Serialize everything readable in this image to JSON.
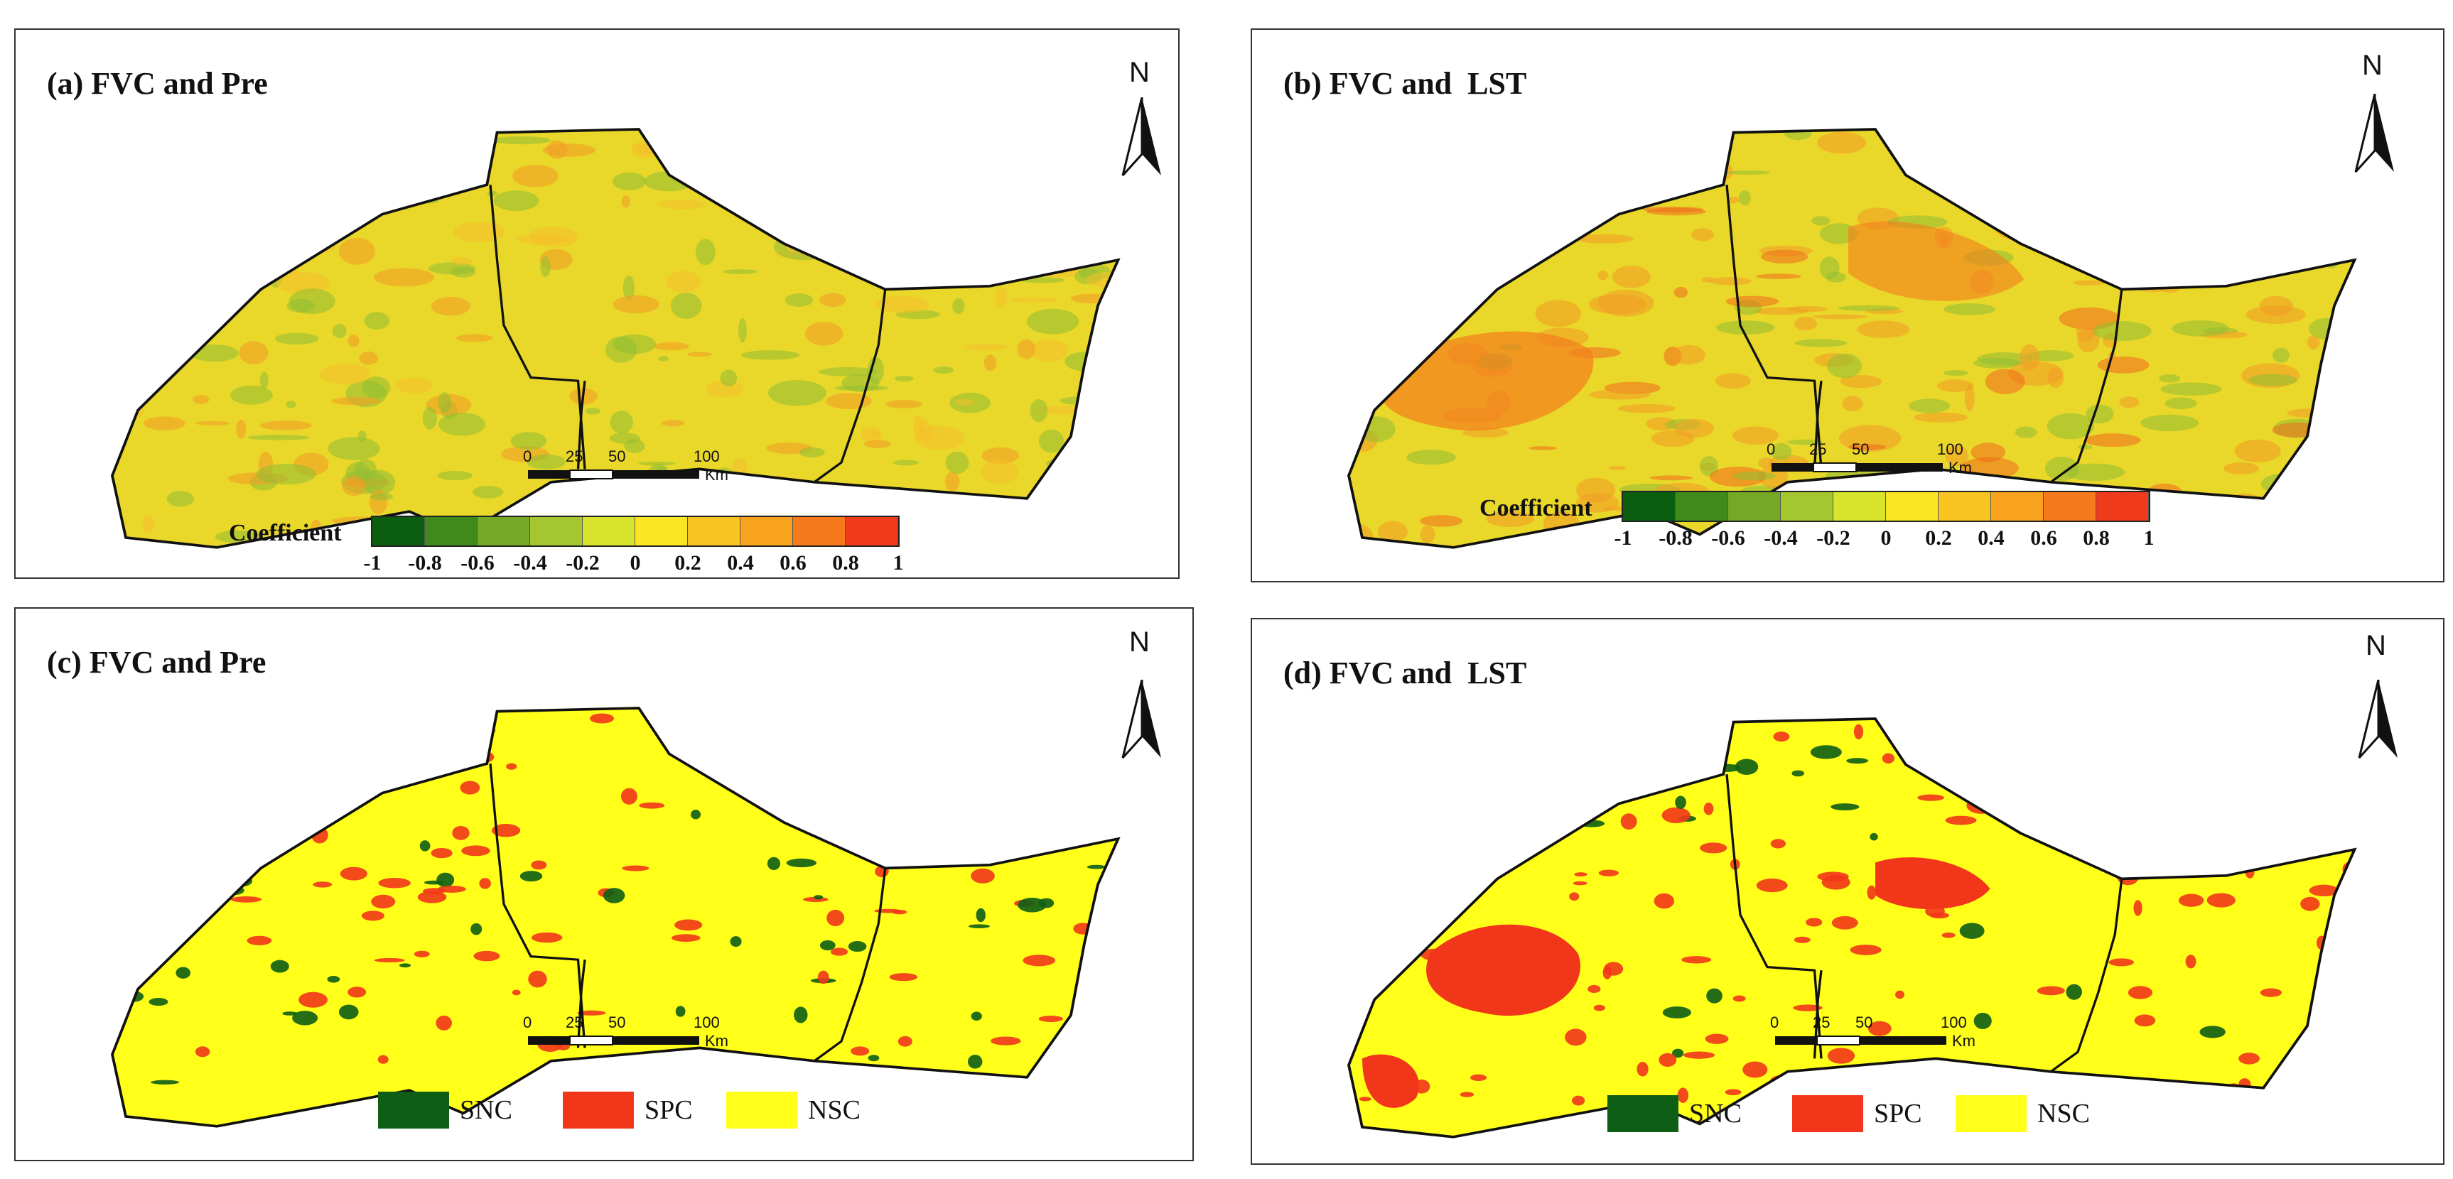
{
  "panels": [
    {
      "id": "a",
      "title": "(a) FVC and Pre",
      "mode": "coef"
    },
    {
      "id": "b",
      "title": "(b) FVC and  LST",
      "mode": "coef"
    },
    {
      "id": "c",
      "title": "(c) FVC and Pre",
      "mode": "class"
    },
    {
      "id": "d",
      "title": "(d) FVC and  LST",
      "mode": "class"
    }
  ],
  "north_label": "N",
  "scale_bar": {
    "ticks": [
      "0",
      "25",
      "50",
      "100"
    ],
    "unit": "Km"
  },
  "coef_legend": {
    "title": "Coefficient",
    "tick_labels": [
      "-1",
      "-0.8",
      "-0.6",
      "-0.4",
      "-0.2",
      "0",
      "0.2",
      "0.4",
      "0.6",
      "0.8",
      "1"
    ],
    "colors": [
      "#0b5e10",
      "#3f8a1a",
      "#74a825",
      "#a4c62e",
      "#d8e52c",
      "#fbe623",
      "#f9c421",
      "#f8a21e",
      "#f67a1c",
      "#f03a1c"
    ]
  },
  "class_legend": [
    {
      "label": "SNC",
      "color": "#0e5e16"
    },
    {
      "label": "SPC",
      "color": "#f2361a"
    },
    {
      "label": "NSC",
      "color": "#ffff1a"
    }
  ],
  "region_colors": {
    "coef_base": "#e9d82a",
    "coef_green": "#8fbd33",
    "coef_orange": "#f39a25",
    "class_base": "#ffff1a",
    "class_red": "#f2361a",
    "class_green": "#0e5e16",
    "outline": "#111111"
  }
}
